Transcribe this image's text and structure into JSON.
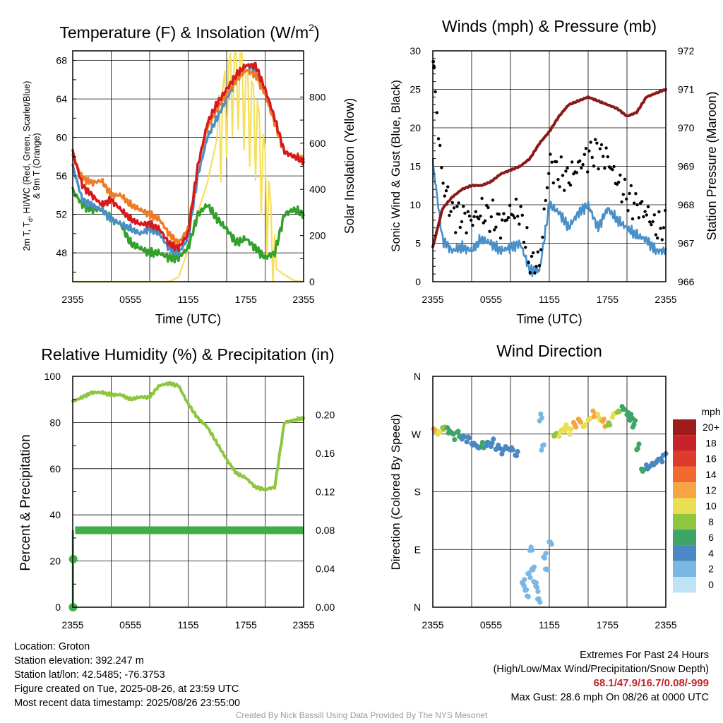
{
  "panels": {
    "temperature": {
      "title": "Temperature (F) & Insolation (W/m",
      "title_sup": "2",
      "title_end": ")",
      "ylabel_line1": "2m T, T",
      "ylabel_sub": "d",
      "ylabel_rest": ", HI/WC (Red, Green, Scarlet/Blue)",
      "ylabel_line2": "& 9m T (Orange)",
      "y2label": "Solar Insolation (Yellow)",
      "xlabel": "Time (UTC)"
    },
    "winds": {
      "title": "Winds (mph) & Pressure (mb)",
      "ylabel": "Sonic Wind & Gust (Blue, Black)",
      "y2label": "Station Pressure (Maroon)",
      "xlabel": "Time (UTC)"
    },
    "humidity": {
      "title": "Relative Humidity (%) & Precipitation (in)",
      "ylabel": "Percent & Precipitation"
    },
    "direction": {
      "title": "Wind Direction",
      "ylabel": "Direction (Colored By Speed)",
      "legend_title": "mph"
    }
  },
  "chart_data": [
    {
      "type": "line",
      "panel": "temperature",
      "x_ticks": [
        "2355",
        "0555",
        "1155",
        "1755",
        "2355"
      ],
      "ylim": [
        45,
        69
      ],
      "y_ticks": [
        48,
        52,
        56,
        60,
        64,
        68
      ],
      "y2lim": [
        0,
        1000
      ],
      "y2_ticks": [
        0,
        200,
        400,
        600,
        800
      ],
      "grid": true,
      "colors": {
        "temp": "#d7191c",
        "dewpoint": "#33a02c",
        "heat_index": "#4a90c8",
        "temp_9m": "#f07b27",
        "solar": "#f6e05a"
      },
      "hours_since_start": [
        0,
        1,
        2,
        3,
        4,
        5,
        6,
        7,
        8,
        9,
        10,
        11,
        12,
        13,
        14,
        15,
        16,
        17,
        18,
        19,
        20,
        21,
        22,
        23,
        24
      ],
      "temp_2m": [
        58.5,
        55.0,
        54.0,
        53.0,
        53.5,
        52.5,
        51.5,
        51.0,
        51.0,
        50.5,
        49.0,
        48.5,
        50.0,
        57.0,
        61.5,
        63.5,
        65.0,
        66.5,
        67.5,
        67.5,
        65.0,
        62.0,
        58.5,
        58.0,
        57.5
      ],
      "temp_9m": [
        58.0,
        55.8,
        55.3,
        55.5,
        54.0,
        54.0,
        53.0,
        52.5,
        52.0,
        51.5,
        50.0,
        49.0,
        50.5,
        57.0,
        61.0,
        63.0,
        64.5,
        66.0,
        67.0,
        66.5,
        64.5,
        61.5,
        58.5,
        58.0,
        57.8
      ],
      "heat_index": [
        57.0,
        53.5,
        53.0,
        52.5,
        51.5,
        51.0,
        50.5,
        50.0,
        50.5,
        50.0,
        48.5,
        48.0,
        49.5,
        56.0,
        60.0,
        62.0,
        64.0,
        66.0,
        67.5,
        67.0,
        64.5,
        61.5,
        58.5,
        58.0,
        57.5
      ],
      "dewpoint": [
        54.5,
        53.0,
        52.5,
        52.5,
        51.5,
        51.0,
        49.0,
        48.5,
        48.0,
        48.0,
        47.5,
        47.5,
        48.5,
        52.0,
        53.0,
        51.5,
        50.5,
        49.0,
        49.5,
        48.5,
        47.5,
        48.0,
        52.0,
        52.5,
        52.0
      ],
      "solar": [
        0,
        0,
        0,
        0,
        0,
        0,
        0,
        0,
        0,
        0,
        0,
        20,
        140,
        300,
        430,
        620,
        800,
        950,
        800,
        700,
        450,
        60,
        30,
        5,
        0
      ]
    },
    {
      "type": "line",
      "panel": "winds",
      "x_ticks": [
        "2355",
        "0555",
        "1155",
        "1755",
        "2355"
      ],
      "ylim": [
        0,
        30
      ],
      "y_ticks": [
        0,
        5,
        10,
        15,
        20,
        25,
        30
      ],
      "y2lim": [
        966,
        972
      ],
      "y2_ticks": [
        966,
        967,
        968,
        969,
        970,
        971,
        972
      ],
      "grid": true,
      "colors": {
        "wind": "#4a90c8",
        "gust": "#000000",
        "pressure": "#8b1a1a"
      },
      "hours_since_start": [
        0,
        1,
        2,
        3,
        4,
        5,
        6,
        7,
        8,
        9,
        10,
        11,
        12,
        13,
        14,
        15,
        16,
        17,
        18,
        19,
        20,
        21,
        22,
        23,
        24
      ],
      "wind": [
        15.5,
        5.5,
        4.0,
        4.5,
        4.0,
        5.5,
        5.0,
        4.0,
        4.5,
        5.0,
        1.5,
        1.5,
        10.0,
        9.0,
        7.0,
        9.0,
        10.0,
        7.0,
        9.5,
        8.0,
        7.0,
        6.0,
        5.5,
        4.0,
        4.0
      ],
      "gust": [
        28.5,
        13.0,
        9.0,
        8.5,
        8.0,
        9.0,
        8.5,
        7.5,
        9.0,
        9.0,
        2.5,
        2.5,
        15.5,
        14.0,
        13.5,
        15.0,
        16.5,
        17.0,
        16.0,
        13.0,
        11.0,
        10.0,
        9.0,
        7.0,
        7.0
      ],
      "pressure": [
        966.9,
        967.9,
        968.2,
        968.4,
        968.5,
        968.5,
        968.6,
        968.8,
        968.9,
        969.0,
        969.2,
        969.6,
        969.9,
        970.3,
        970.6,
        970.7,
        970.8,
        970.7,
        970.6,
        970.5,
        970.3,
        970.4,
        970.8,
        970.9,
        971.0
      ],
      "gust_max_label": "28.6"
    },
    {
      "type": "line",
      "panel": "humidity",
      "x_ticks": [
        "2355",
        "0555",
        "1155",
        "1755",
        "2355"
      ],
      "ylim": [
        0,
        100
      ],
      "y_ticks": [
        0,
        20,
        40,
        60,
        80,
        100
      ],
      "y2lim": [
        0,
        0.24
      ],
      "y2_ticks": [
        "0.00",
        "0.04",
        "0.08",
        "0.12",
        "0.16",
        "0.20"
      ],
      "grid": true,
      "colors": {
        "rh": "#8dc63f",
        "precip": "#3fae49"
      },
      "hours_since_start": [
        0,
        1,
        2,
        3,
        4,
        5,
        6,
        7,
        8,
        9,
        10,
        11,
        12,
        13,
        14,
        15,
        16,
        17,
        18,
        19,
        20,
        21,
        22,
        23,
        24
      ],
      "rh": [
        89,
        91,
        93,
        93,
        92,
        92,
        90,
        91,
        91,
        96,
        97,
        96,
        88,
        82,
        78,
        71,
        64,
        58,
        56,
        52,
        51,
        52,
        80,
        81,
        82
      ],
      "precip": [
        0.0,
        0.05,
        0.08,
        0.08,
        0.08,
        0.08,
        0.08,
        0.08,
        0.08,
        0.08,
        0.08,
        0.08,
        0.08,
        0.08,
        0.08,
        0.08,
        0.08,
        0.08,
        0.08,
        0.08,
        0.08,
        0.08,
        0.08,
        0.08,
        0.08
      ]
    },
    {
      "type": "scatter",
      "panel": "direction",
      "x_ticks": [
        "2355",
        "0555",
        "1155",
        "1755",
        "2355"
      ],
      "y_ticks": [
        "N",
        "E",
        "S",
        "W",
        "N"
      ],
      "ylim": [
        0,
        360
      ],
      "grid": true,
      "legend_labels": [
        "20+",
        "18",
        "16",
        "14",
        "12",
        "10",
        "8",
        "6",
        "4",
        "2",
        "0"
      ],
      "legend_colors": [
        "#9e1b1b",
        "#c9232a",
        "#de3b2c",
        "#f16a2c",
        "#f7a443",
        "#e8df53",
        "#8fc63f",
        "#3fa566",
        "#4a88c4",
        "#7ab8e3",
        "#bfe3f5"
      ],
      "hours_since_start": [
        0.1,
        0.5,
        1.0,
        1.5,
        2.0,
        2.5,
        3.0,
        3.5,
        4.0,
        4.5,
        5.0,
        5.5,
        6.0,
        6.5,
        7.0,
        7.5,
        8.0,
        8.5,
        9.2,
        9.4,
        9.6,
        9.8,
        10.0,
        10.2,
        10.4,
        10.6,
        10.8,
        11.0,
        11.2,
        11.4,
        11.6,
        12.0,
        12.5,
        13.0,
        13.5,
        14.0,
        14.5,
        15.0,
        15.5,
        16.0,
        16.5,
        17.0,
        17.5,
        18.0,
        18.5,
        19.0,
        19.5,
        20.0,
        20.3,
        20.6,
        21.0,
        21.5,
        22.0,
        22.5,
        23.0,
        23.5,
        24.0
      ],
      "direction_deg": [
        275,
        272,
        280,
        276,
        268,
        270,
        264,
        263,
        255,
        250,
        252,
        254,
        256,
        250,
        244,
        248,
        246,
        238,
        40,
        30,
        20,
        50,
        90,
        60,
        40,
        30,
        10,
        295,
        250,
        80,
        60,
        100,
        268,
        272,
        280,
        276,
        285,
        290,
        282,
        294,
        302,
        296,
        288,
        284,
        300,
        306,
        310,
        300,
        295,
        285,
        250,
        215,
        218,
        222,
        228,
        232,
        238
      ],
      "speed_mph": [
        12,
        10,
        8,
        5,
        6,
        5,
        4,
        4,
        4,
        4,
        5,
        4,
        4,
        3,
        4,
        4,
        4,
        4,
        1,
        1,
        1,
        2,
        1,
        2,
        2,
        1,
        1,
        2,
        2,
        2,
        1,
        2,
        8,
        10,
        9,
        10,
        11,
        12,
        10,
        9,
        11,
        10,
        12,
        8,
        9,
        7,
        6,
        6,
        6,
        6,
        6,
        5,
        4,
        4,
        4,
        4,
        4
      ]
    }
  ],
  "info": {
    "location": "Location: Groton",
    "elevation": "Station elevation: 392.247 m",
    "latlon": "Station lat/lon: 42.5485; -76.3753",
    "created": "Figure created on Tue, 2025-08-26, at 23:59 UTC",
    "recent": "Most recent data timestamp: 2025/08/26 23:55:00"
  },
  "extremes": {
    "heading": "Extremes For Past 24 Hours",
    "subheading": "(High/Low/Max Wind/Precipitation/Snow Depth)",
    "values": "68.1/47.9/16.7/0.08/-999",
    "gust": "Max Gust: 28.6 mph On 08/26 at 0000 UTC"
  },
  "credit": "Created By Nick Bassill Using Data Provided By The NYS Mesonet"
}
